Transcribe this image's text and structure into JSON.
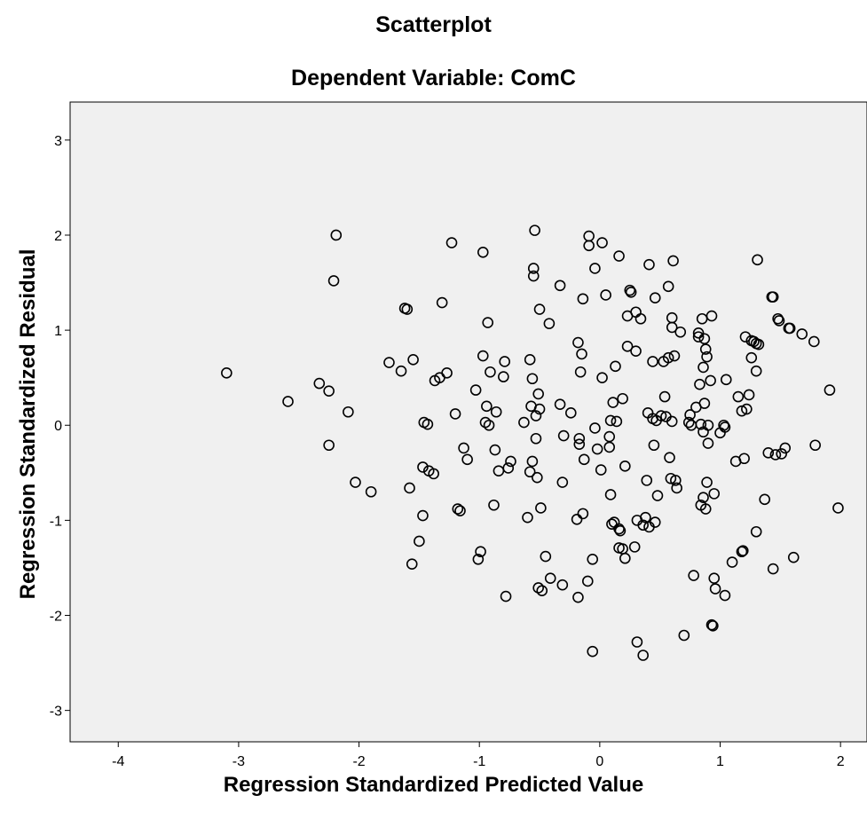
{
  "chart_data": {
    "type": "scatter",
    "title": "Scatterplot",
    "subtitle": "Dependent Variable: ComC",
    "xlabel": "Regression Standardized Predicted Value",
    "ylabel": "Regression Standardized Residual",
    "xlim": [
      -4.4,
      2.22
    ],
    "ylim": [
      -3.33,
      3.4
    ],
    "xticks": [
      -4,
      -3,
      -2,
      -1,
      0,
      1,
      2
    ],
    "yticks": [
      -3,
      -2,
      -1,
      0,
      1,
      2,
      3
    ],
    "xtick_labels": [
      "-4",
      "-3",
      "-2",
      "-1",
      "0",
      "1",
      "2"
    ],
    "ytick_labels": [
      "-3",
      "-2",
      "-1",
      "0",
      "1",
      "2",
      "3"
    ],
    "grid": false,
    "plot_background": "#f0f0f0",
    "marker": "open-circle",
    "marker_color": "#000000",
    "points": [
      [
        -3.1,
        0.55
      ],
      [
        -2.59,
        0.25
      ],
      [
        -2.33,
        0.44
      ],
      [
        -2.25,
        0.36
      ],
      [
        -2.25,
        -0.21
      ],
      [
        -2.21,
        1.52
      ],
      [
        -2.19,
        2.0
      ],
      [
        -2.09,
        0.14
      ],
      [
        -2.03,
        -0.6
      ],
      [
        -1.9,
        -0.7
      ],
      [
        -1.75,
        0.66
      ],
      [
        -1.65,
        0.57
      ],
      [
        -1.62,
        1.23
      ],
      [
        -1.6,
        1.22
      ],
      [
        -1.58,
        -0.66
      ],
      [
        -1.56,
        -1.46
      ],
      [
        -1.55,
        0.69
      ],
      [
        -1.5,
        -1.22
      ],
      [
        -1.47,
        -0.95
      ],
      [
        -1.47,
        -0.44
      ],
      [
        -1.46,
        0.03
      ],
      [
        -1.43,
        0.01
      ],
      [
        -1.42,
        -0.48
      ],
      [
        -1.38,
        -0.51
      ],
      [
        -1.37,
        0.47
      ],
      [
        -1.33,
        0.5
      ],
      [
        -1.31,
        1.29
      ],
      [
        -1.27,
        0.55
      ],
      [
        -1.23,
        1.92
      ],
      [
        -1.2,
        0.12
      ],
      [
        -1.18,
        -0.88
      ],
      [
        -1.16,
        -0.9
      ],
      [
        -1.13,
        -0.24
      ],
      [
        -1.1,
        -0.36
      ],
      [
        -1.03,
        0.37
      ],
      [
        -1.01,
        -1.41
      ],
      [
        -0.99,
        -1.33
      ],
      [
        -0.97,
        0.73
      ],
      [
        -0.97,
        1.82
      ],
      [
        -0.95,
        0.03
      ],
      [
        -0.94,
        0.2
      ],
      [
        -0.93,
        1.08
      ],
      [
        -0.92,
        0.0
      ],
      [
        -0.91,
        0.56
      ],
      [
        -0.88,
        -0.84
      ],
      [
        -0.87,
        -0.26
      ],
      [
        -0.86,
        0.14
      ],
      [
        -0.84,
        -0.48
      ],
      [
        -0.8,
        0.51
      ],
      [
        -0.79,
        0.67
      ],
      [
        -0.78,
        -1.8
      ],
      [
        -0.76,
        -0.45
      ],
      [
        -0.74,
        -0.38
      ],
      [
        -0.63,
        0.03
      ],
      [
        -0.6,
        -0.97
      ],
      [
        -0.58,
        0.69
      ],
      [
        -0.58,
        -0.49
      ],
      [
        -0.57,
        0.2
      ],
      [
        -0.56,
        0.49
      ],
      [
        -0.56,
        -0.38
      ],
      [
        -0.55,
        1.57
      ],
      [
        -0.55,
        1.65
      ],
      [
        -0.54,
        2.05
      ],
      [
        -0.53,
        0.1
      ],
      [
        -0.53,
        -0.14
      ],
      [
        -0.52,
        -0.55
      ],
      [
        -0.51,
        -1.71
      ],
      [
        -0.51,
        0.33
      ],
      [
        -0.5,
        0.17
      ],
      [
        -0.5,
        1.22
      ],
      [
        -0.49,
        -0.87
      ],
      [
        -0.48,
        -1.74
      ],
      [
        -0.45,
        -1.38
      ],
      [
        -0.42,
        1.07
      ],
      [
        -0.41,
        -1.61
      ],
      [
        -0.33,
        0.22
      ],
      [
        -0.33,
        1.47
      ],
      [
        -0.31,
        -0.6
      ],
      [
        -0.31,
        -1.68
      ],
      [
        -0.3,
        -0.11
      ],
      [
        -0.24,
        0.13
      ],
      [
        -0.19,
        -0.99
      ],
      [
        -0.18,
        0.87
      ],
      [
        -0.18,
        -1.81
      ],
      [
        -0.17,
        -0.14
      ],
      [
        -0.17,
        -0.2
      ],
      [
        -0.16,
        0.56
      ],
      [
        -0.15,
        0.75
      ],
      [
        -0.14,
        1.33
      ],
      [
        -0.14,
        -0.93
      ],
      [
        -0.13,
        -0.36
      ],
      [
        -0.1,
        -1.64
      ],
      [
        -0.09,
        1.89
      ],
      [
        -0.09,
        1.99
      ],
      [
        -0.06,
        -2.38
      ],
      [
        -0.06,
        -1.41
      ],
      [
        -0.04,
        1.65
      ],
      [
        -0.04,
        -0.03
      ],
      [
        -0.02,
        -0.25
      ],
      [
        0.01,
        -0.47
      ],
      [
        0.02,
        1.92
      ],
      [
        0.02,
        0.5
      ],
      [
        0.05,
        1.37
      ],
      [
        0.08,
        -0.12
      ],
      [
        0.08,
        -0.23
      ],
      [
        0.09,
        0.05
      ],
      [
        0.09,
        -0.73
      ],
      [
        0.1,
        -1.04
      ],
      [
        0.11,
        0.24
      ],
      [
        0.12,
        -1.02
      ],
      [
        0.13,
        0.62
      ],
      [
        0.14,
        0.04
      ],
      [
        0.16,
        -1.29
      ],
      [
        0.16,
        1.78
      ],
      [
        0.16,
        -1.09
      ],
      [
        0.17,
        -1.11
      ],
      [
        0.19,
        0.28
      ],
      [
        0.19,
        -1.3
      ],
      [
        0.21,
        -1.4
      ],
      [
        0.21,
        -0.43
      ],
      [
        0.23,
        0.83
      ],
      [
        0.23,
        1.15
      ],
      [
        0.25,
        1.42
      ],
      [
        0.26,
        1.4
      ],
      [
        0.29,
        -1.28
      ],
      [
        0.3,
        1.19
      ],
      [
        0.3,
        0.78
      ],
      [
        0.31,
        -2.28
      ],
      [
        0.31,
        -1.0
      ],
      [
        0.34,
        1.12
      ],
      [
        0.36,
        -2.42
      ],
      [
        0.36,
        -1.05
      ],
      [
        0.38,
        -0.97
      ],
      [
        0.39,
        -0.58
      ],
      [
        0.4,
        0.13
      ],
      [
        0.41,
        1.69
      ],
      [
        0.41,
        -1.07
      ],
      [
        0.44,
        0.67
      ],
      [
        0.44,
        0.07
      ],
      [
        0.45,
        -0.21
      ],
      [
        0.46,
        1.34
      ],
      [
        0.46,
        -1.02
      ],
      [
        0.47,
        0.05
      ],
      [
        0.48,
        -0.74
      ],
      [
        0.51,
        0.1
      ],
      [
        0.53,
        0.67
      ],
      [
        0.54,
        0.3
      ],
      [
        0.55,
        0.09
      ],
      [
        0.57,
        1.46
      ],
      [
        0.57,
        0.71
      ],
      [
        0.58,
        -0.34
      ],
      [
        0.59,
        -0.56
      ],
      [
        0.6,
        0.04
      ],
      [
        0.6,
        1.03
      ],
      [
        0.6,
        1.13
      ],
      [
        0.61,
        1.73
      ],
      [
        0.62,
        0.73
      ],
      [
        0.63,
        -0.58
      ],
      [
        0.64,
        -0.66
      ],
      [
        0.67,
        0.98
      ],
      [
        0.7,
        -2.21
      ],
      [
        0.74,
        0.03
      ],
      [
        0.75,
        0.11
      ],
      [
        0.76,
        0.0
      ],
      [
        0.78,
        -1.58
      ],
      [
        0.8,
        0.19
      ],
      [
        0.82,
        0.93
      ],
      [
        0.82,
        0.97
      ],
      [
        0.83,
        0.43
      ],
      [
        0.84,
        0.01
      ],
      [
        0.84,
        -0.84
      ],
      [
        0.85,
        1.12
      ],
      [
        0.86,
        -0.07
      ],
      [
        0.86,
        0.61
      ],
      [
        0.86,
        -0.76
      ],
      [
        0.87,
        0.23
      ],
      [
        0.87,
        0.91
      ],
      [
        0.88,
        0.8
      ],
      [
        0.88,
        -0.88
      ],
      [
        0.89,
        -0.6
      ],
      [
        0.89,
        0.72
      ],
      [
        0.9,
        0.0
      ],
      [
        0.9,
        -0.19
      ],
      [
        0.92,
        0.47
      ],
      [
        0.93,
        -2.1
      ],
      [
        0.93,
        1.15
      ],
      [
        0.94,
        -2.11
      ],
      [
        0.95,
        -1.61
      ],
      [
        0.95,
        -0.72
      ],
      [
        0.96,
        -1.72
      ],
      [
        1.0,
        -0.08
      ],
      [
        1.03,
        0.0
      ],
      [
        1.04,
        -0.02
      ],
      [
        1.04,
        -1.79
      ],
      [
        1.05,
        0.48
      ],
      [
        1.1,
        -1.44
      ],
      [
        1.13,
        -0.38
      ],
      [
        1.15,
        0.3
      ],
      [
        1.18,
        0.15
      ],
      [
        1.18,
        -1.33
      ],
      [
        1.19,
        -1.32
      ],
      [
        1.2,
        -0.35
      ],
      [
        1.21,
        0.93
      ],
      [
        1.22,
        0.17
      ],
      [
        1.24,
        0.32
      ],
      [
        1.26,
        0.89
      ],
      [
        1.26,
        0.71
      ],
      [
        1.28,
        0.88
      ],
      [
        1.3,
        0.57
      ],
      [
        1.3,
        0.86
      ],
      [
        1.3,
        -1.12
      ],
      [
        1.31,
        1.74
      ],
      [
        1.32,
        0.85
      ],
      [
        1.37,
        -0.78
      ],
      [
        1.4,
        -0.29
      ],
      [
        1.43,
        1.35
      ],
      [
        1.44,
        1.35
      ],
      [
        1.44,
        -1.51
      ],
      [
        1.46,
        -0.31
      ],
      [
        1.48,
        1.12
      ],
      [
        1.49,
        1.1
      ],
      [
        1.51,
        -0.3
      ],
      [
        1.54,
        -0.24
      ],
      [
        1.57,
        1.02
      ],
      [
        1.58,
        1.02
      ],
      [
        1.61,
        -1.39
      ],
      [
        1.68,
        0.96
      ],
      [
        1.78,
        0.88
      ],
      [
        1.79,
        -0.21
      ],
      [
        1.91,
        0.37
      ],
      [
        1.98,
        -0.87
      ]
    ]
  }
}
